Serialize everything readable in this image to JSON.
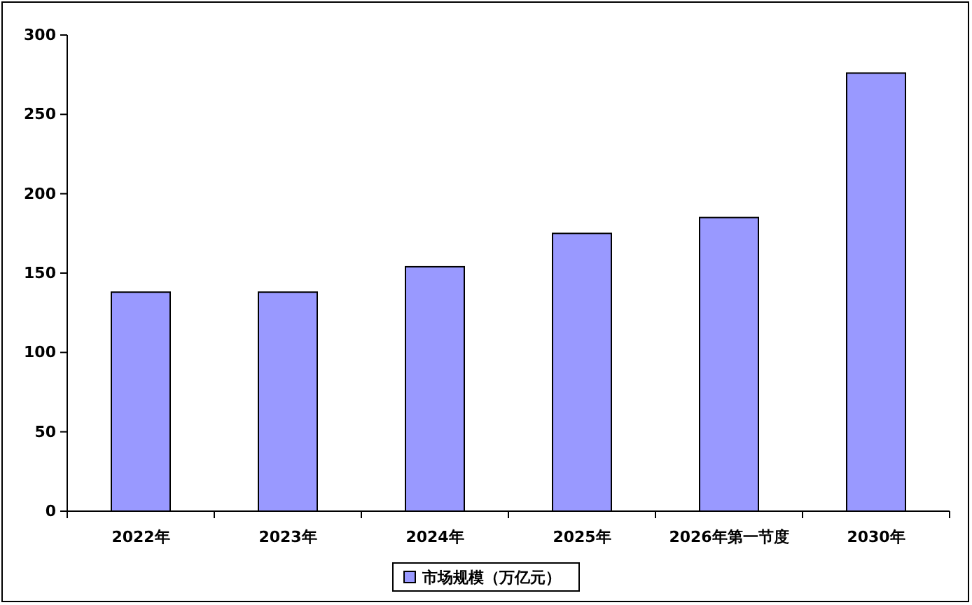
{
  "chart_data": {
    "type": "bar",
    "categories": [
      "2022年",
      "2023年",
      "2024年",
      "2025年",
      "2026年第一节度",
      "2030年"
    ],
    "series": [
      {
        "name": "市场规模（万亿元）",
        "color": "#9999ff",
        "values": [
          138,
          138,
          154,
          175,
          185,
          276
        ]
      }
    ],
    "ylim": [
      0,
      300
    ],
    "yticks": [
      0,
      50,
      100,
      150,
      200,
      250,
      300
    ],
    "grid": false,
    "legend": "bottom"
  }
}
